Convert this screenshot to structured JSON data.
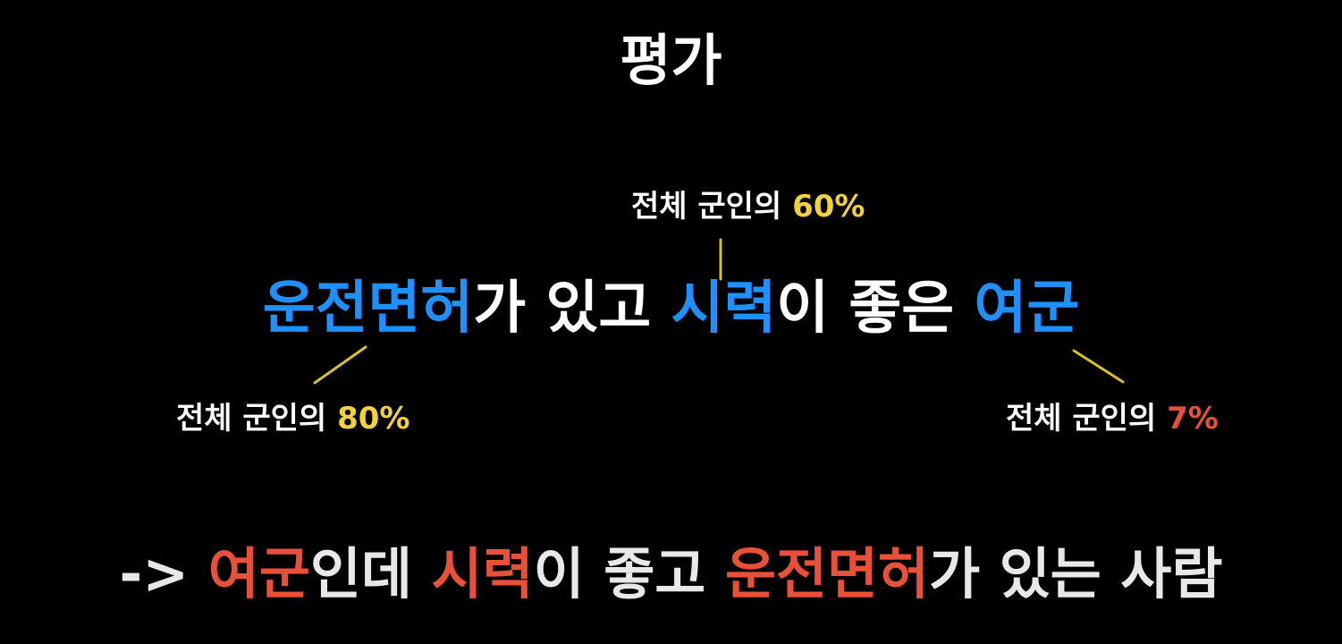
{
  "colors": {
    "background": "#000000",
    "text": "#ffffff",
    "blue": "#1e90ff",
    "yellow": "#f2d13a",
    "red": "#e8503a",
    "line": "#d9c12a"
  },
  "title": "평가",
  "main_sentence": {
    "part1": "운전면허",
    "part2": "가 있고 ",
    "part3": "시력",
    "part4": "이 좋은 ",
    "part5": "여군"
  },
  "annotations": {
    "top": {
      "label": "전체 군인의 ",
      "value": "60%"
    },
    "left": {
      "label": "전체 군인의 ",
      "value": "80%"
    },
    "right": {
      "label": "전체 군인의 ",
      "value": "7%"
    }
  },
  "conclusion": {
    "arrow": "-> ",
    "part1": "여군",
    "part2": "인데 ",
    "part3": "시력",
    "part4": "이 좋고 ",
    "part5": "운전면허",
    "part6": "가 있는 사람"
  }
}
